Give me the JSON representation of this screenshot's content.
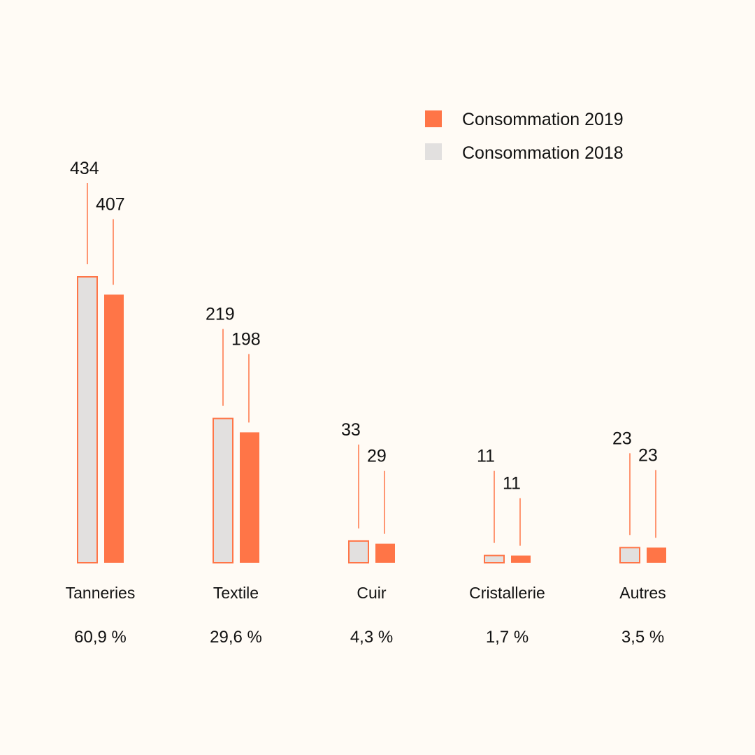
{
  "chart_data": {
    "type": "bar",
    "categories": [
      "Tanneries",
      "Textile",
      "Cuir",
      "Cristallerie",
      "Autres"
    ],
    "shares": [
      "60,9 %",
      "29,6 %",
      "4,3 %",
      "1,7 %",
      "3,5 %"
    ],
    "series": [
      {
        "name": "Consommation 2018",
        "values": [
          434,
          219,
          33,
          11,
          23
        ],
        "labels": [
          "434",
          "219",
          "33",
          "11",
          "23"
        ],
        "color": "#e2e0df",
        "outline": "#ff7547"
      },
      {
        "name": "Consommation 2019",
        "values": [
          407,
          198,
          29,
          11,
          23
        ],
        "labels": [
          "407",
          "198",
          "29",
          "11",
          "23"
        ],
        "color": "#ff7547"
      }
    ],
    "legend": [
      "Consommation 2019",
      "Consommation 2018"
    ],
    "legend_position": "top-right",
    "ylim": [
      0,
      434
    ],
    "grid": false
  }
}
